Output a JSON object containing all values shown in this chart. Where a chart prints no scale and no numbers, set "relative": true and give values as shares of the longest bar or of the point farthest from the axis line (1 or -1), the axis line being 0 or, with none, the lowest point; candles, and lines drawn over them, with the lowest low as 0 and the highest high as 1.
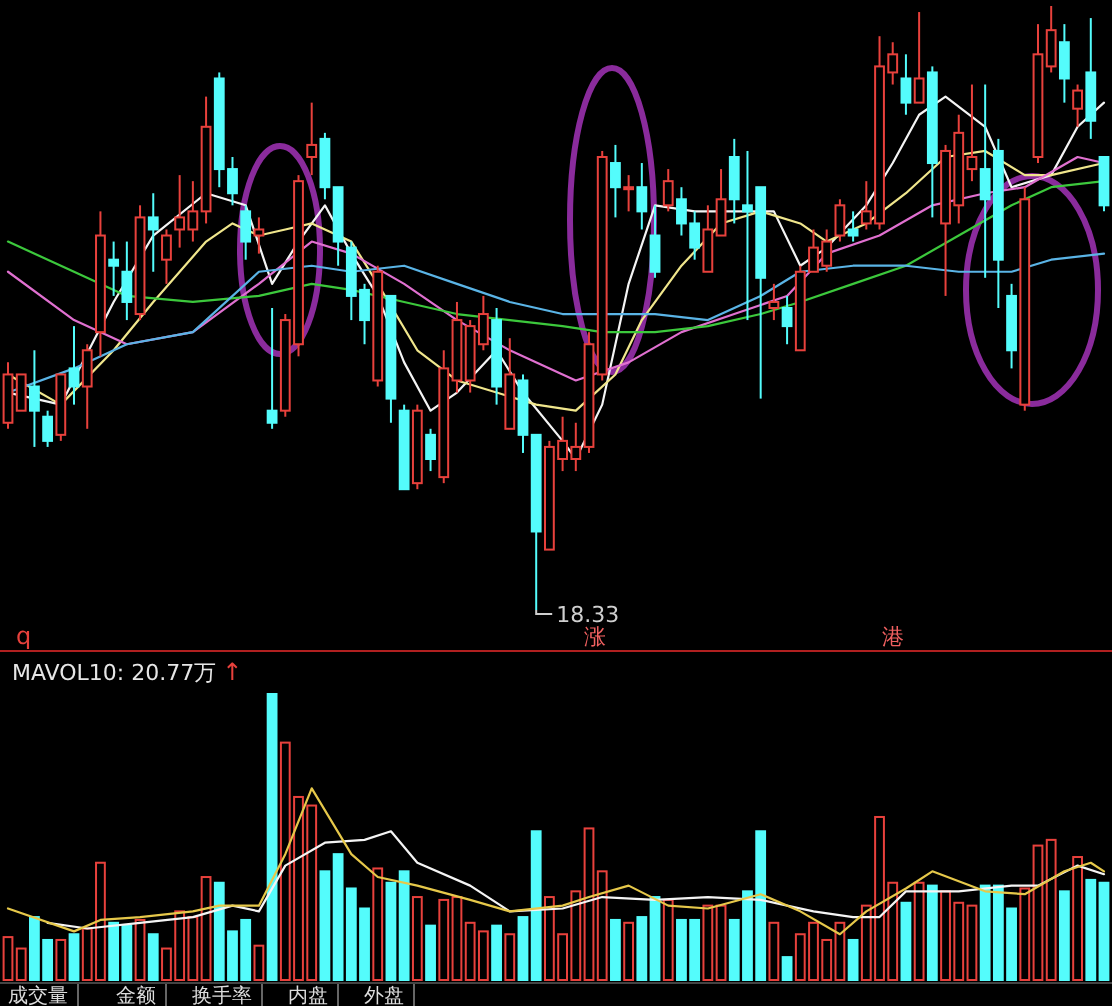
{
  "chart_data": [
    {
      "type": "candlestick",
      "relative": true,
      "categories": [
        null,
        null,
        null,
        null,
        null,
        null,
        null,
        null,
        null,
        null,
        null,
        null,
        null,
        null,
        null,
        null,
        null,
        null,
        null,
        null,
        null,
        null,
        null,
        null,
        null,
        null,
        null,
        null,
        null,
        null,
        null,
        null,
        null,
        null,
        null,
        null,
        null,
        null,
        null,
        null,
        null,
        null,
        null,
        null,
        null,
        null,
        null,
        null,
        null,
        null,
        null,
        null,
        null,
        null,
        null,
        null,
        null,
        null,
        null,
        null,
        null,
        null,
        null,
        null,
        null,
        null,
        null,
        null,
        null,
        null,
        null,
        null,
        null,
        null,
        null,
        null,
        null,
        null,
        null,
        null,
        null,
        null,
        null,
        null
      ],
      "ohlc": [
        [
          0.31,
          0.41,
          0.3,
          0.39
        ],
        [
          0.33,
          0.39,
          0.33,
          0.39
        ],
        [
          0.37,
          0.43,
          0.27,
          0.33
        ],
        [
          0.32,
          0.33,
          0.27,
          0.28
        ],
        [
          0.29,
          0.39,
          0.28,
          0.39
        ],
        [
          0.4,
          0.47,
          0.34,
          0.37
        ],
        [
          0.37,
          0.44,
          0.3,
          0.43
        ],
        [
          0.46,
          0.66,
          0.42,
          0.62
        ],
        [
          0.58,
          0.61,
          0.52,
          0.57
        ],
        [
          0.56,
          0.61,
          0.48,
          0.51
        ],
        [
          0.49,
          0.67,
          0.48,
          0.65
        ],
        [
          0.65,
          0.69,
          0.56,
          0.63
        ],
        [
          0.58,
          0.63,
          0.54,
          0.62
        ],
        [
          0.63,
          0.72,
          0.6,
          0.65
        ],
        [
          0.63,
          0.71,
          0.61,
          0.66
        ],
        [
          0.66,
          0.85,
          0.64,
          0.8
        ],
        [
          0.88,
          0.89,
          0.7,
          0.73
        ],
        [
          0.73,
          0.75,
          0.67,
          0.69
        ],
        [
          0.66,
          0.67,
          0.58,
          0.61
        ],
        [
          0.62,
          0.65,
          0.59,
          0.63
        ],
        [
          0.33,
          0.5,
          0.3,
          0.31
        ],
        [
          0.33,
          0.49,
          0.32,
          0.48
        ],
        [
          0.44,
          0.72,
          0.42,
          0.71
        ],
        [
          0.75,
          0.84,
          0.72,
          0.77
        ],
        [
          0.78,
          0.79,
          0.68,
          0.7
        ],
        [
          0.7,
          0.7,
          0.57,
          0.61
        ],
        [
          0.6,
          0.61,
          0.48,
          0.52
        ],
        [
          0.53,
          0.54,
          0.44,
          0.48
        ],
        [
          0.38,
          0.57,
          0.37,
          0.56
        ],
        [
          0.52,
          0.52,
          0.31,
          0.35
        ],
        [
          0.33,
          0.34,
          0.2,
          0.2
        ],
        [
          0.21,
          0.34,
          0.2,
          0.33
        ],
        [
          0.29,
          0.3,
          0.23,
          0.25
        ],
        [
          0.22,
          0.43,
          0.21,
          0.4
        ],
        [
          0.38,
          0.51,
          0.36,
          0.48
        ],
        [
          0.38,
          0.48,
          0.36,
          0.47
        ],
        [
          0.44,
          0.52,
          0.43,
          0.49
        ],
        [
          0.48,
          0.5,
          0.34,
          0.37
        ],
        [
          0.3,
          0.45,
          0.3,
          0.39
        ],
        [
          0.38,
          0.39,
          0.26,
          0.29
        ],
        [
          0.29,
          0.29,
          0,
          0.13
        ],
        [
          0.1,
          0.28,
          0.1,
          0.27
        ],
        [
          0.25,
          0.32,
          0.23,
          0.28
        ],
        [
          0.25,
          0.31,
          0.23,
          0.27
        ],
        [
          0.27,
          0.46,
          0.26,
          0.44
        ],
        [
          0.39,
          0.76,
          0.38,
          0.75
        ],
        [
          0.74,
          0.77,
          0.65,
          0.7
        ],
        [
          0.7,
          0.72,
          0.66,
          0.7
        ],
        [
          0.7,
          0.74,
          0.63,
          0.66
        ],
        [
          0.62,
          0.67,
          0.55,
          0.56
        ],
        [
          0.67,
          0.73,
          0.66,
          0.71
        ],
        [
          0.68,
          0.7,
          0.62,
          0.64
        ],
        [
          0.64,
          0.66,
          0.58,
          0.6
        ],
        [
          0.56,
          0.67,
          0.56,
          0.63
        ],
        [
          0.62,
          0.73,
          0.62,
          0.68
        ],
        [
          0.75,
          0.78,
          0.64,
          0.68
        ],
        [
          0.67,
          0.76,
          0.48,
          0.66
        ],
        [
          0.7,
          0.7,
          0.35,
          0.55
        ],
        [
          0.5,
          0.54,
          0.48,
          0.51
        ],
        [
          0.5,
          0.52,
          0.44,
          0.47
        ],
        [
          0.43,
          0.57,
          0.43,
          0.56
        ],
        [
          0.56,
          0.63,
          0.56,
          0.6
        ],
        [
          0.57,
          0.63,
          0.56,
          0.61
        ],
        [
          0.62,
          0.68,
          0.61,
          0.67
        ],
        [
          0.63,
          0.66,
          0.61,
          0.62
        ],
        [
          0.64,
          0.71,
          0.63,
          0.66
        ],
        [
          0.64,
          0.95,
          0.63,
          0.9
        ],
        [
          0.89,
          0.94,
          0.87,
          0.92
        ],
        [
          0.88,
          0.92,
          0.82,
          0.84
        ],
        [
          0.84,
          0.99,
          0.84,
          0.88
        ],
        [
          0.89,
          0.9,
          0.65,
          0.74
        ],
        [
          0.64,
          0.77,
          0.52,
          0.76
        ],
        [
          0.67,
          0.82,
          0.64,
          0.79
        ],
        [
          0.73,
          0.87,
          0.71,
          0.75
        ],
        [
          0.73,
          0.87,
          0.55,
          0.68
        ],
        [
          0.76,
          0.78,
          0.5,
          0.58
        ],
        [
          0.52,
          0.54,
          0.4,
          0.43
        ],
        [
          0.34,
          0.7,
          0.33,
          0.68
        ],
        [
          0.75,
          0.97,
          0.74,
          0.92
        ],
        [
          0.9,
          1,
          0.89,
          0.96
        ],
        [
          0.94,
          0.97,
          0.84,
          0.88
        ],
        [
          0.83,
          0.87,
          0.8,
          0.86
        ],
        [
          0.89,
          0.98,
          0.78,
          0.81
        ],
        [
          0.75,
          0.75,
          0.66,
          0.67
        ]
      ],
      "colors": [
        "#e8413c",
        "#e8413c",
        "#54fcfc",
        "#54fcfc",
        "#e8413c",
        "#54fcfc",
        "#e8413c",
        "#e8413c",
        "#54fcfc",
        "#54fcfc",
        "#e8413c",
        "#54fcfc",
        "#e8413c",
        "#e8413c",
        "#e8413c",
        "#e8413c",
        "#54fcfc",
        "#54fcfc",
        "#54fcfc",
        "#e8413c",
        "#54fcfc",
        "#e8413c",
        "#e8413c",
        "#e8413c",
        "#54fcfc",
        "#54fcfc",
        "#54fcfc",
        "#54fcfc",
        "#e8413c",
        "#54fcfc",
        "#54fcfc",
        "#e8413c",
        "#54fcfc",
        "#e8413c",
        "#e8413c",
        "#e8413c",
        "#e8413c",
        "#54fcfc",
        "#e8413c",
        "#54fcfc",
        "#54fcfc",
        "#e8413c",
        "#e8413c",
        "#e8413c",
        "#e8413c",
        "#e8413c",
        "#54fcfc",
        "#e8413c",
        "#54fcfc",
        "#54fcfc",
        "#e8413c",
        "#54fcfc",
        "#54fcfc",
        "#e8413c",
        "#e8413c",
        "#54fcfc",
        "#54fcfc",
        "#54fcfc",
        "#e8413c",
        "#54fcfc",
        "#e8413c",
        "#e8413c",
        "#e8413c",
        "#e8413c",
        "#54fcfc",
        "#e8413c",
        "#e8413c",
        "#e8413c",
        "#54fcfc",
        "#e8413c",
        "#54fcfc",
        "#e8413c",
        "#e8413c",
        "#e8413c",
        "#54fcfc",
        "#54fcfc",
        "#54fcfc",
        "#e8413c",
        "#e8413c",
        "#e8413c",
        "#54fcfc",
        "#e8413c",
        "#54fcfc",
        "#54fcfc"
      ],
      "series": [
        {
          "type": "line",
          "color": "#f4f4f4",
          "values": [
            0.36,
            null,
            null,
            null,
            0.34,
            null,
            null,
            null,
            0.51,
            null,
            null,
            0.62,
            null,
            null,
            null,
            0.69,
            null,
            null,
            0.67,
            null,
            0.54,
            null,
            0.61,
            null,
            0.67,
            null,
            0.59,
            null,
            0.52,
            null,
            0.41,
            null,
            0.33,
            null,
            0.36,
            null,
            null,
            0.43,
            null,
            0.36,
            null,
            null,
            0.28,
            0.25,
            null,
            0.34,
            null,
            0.54,
            null,
            0.67,
            null,
            null,
            0.66,
            null,
            null,
            0.66,
            null,
            null,
            0.66,
            null,
            0.57,
            null,
            0.6,
            null,
            null,
            0.67,
            null,
            0.74,
            null,
            0.82,
            null,
            0.85,
            null,
            null,
            0.8,
            null,
            0.7,
            null,
            null,
            0.72,
            null,
            0.8,
            null,
            0.84
          ]
        },
        {
          "type": "line",
          "color": "#f0e68c",
          "values": [
            0.39,
            null,
            null,
            null,
            0.34,
            null,
            null,
            null,
            0.43,
            null,
            null,
            0.51,
            null,
            null,
            null,
            0.61,
            null,
            0.64,
            null,
            0.62,
            null,
            0.63,
            null,
            0.64,
            null,
            null,
            0.61,
            null,
            0.54,
            null,
            null,
            0.43,
            null,
            null,
            0.38,
            null,
            null,
            0.36,
            null,
            null,
            0.34,
            null,
            null,
            0.33,
            0.35,
            null,
            0.39,
            null,
            0.48,
            null,
            null,
            0.57,
            null,
            null,
            0.64,
            null,
            null,
            0.66,
            null,
            null,
            0.64,
            null,
            0.61,
            null,
            null,
            0.64,
            null,
            null,
            0.69,
            null,
            null,
            0.75,
            null,
            null,
            0.76,
            null,
            null,
            0.72,
            null,
            0.72,
            null,
            null,
            null,
            0.74
          ]
        },
        {
          "type": "line",
          "color": "#e070d0",
          "values": [
            0.56,
            null,
            null,
            null,
            null,
            0.48,
            null,
            null,
            null,
            0.44,
            null,
            null,
            null,
            null,
            0.46,
            null,
            null,
            null,
            null,
            0.54,
            null,
            null,
            null,
            0.61,
            null,
            null,
            0.59,
            null,
            null,
            null,
            0.54,
            null,
            null,
            null,
            0.48,
            null,
            null,
            null,
            0.43,
            null,
            null,
            null,
            0.39,
            0.38,
            null,
            null,
            null,
            0.41,
            null,
            null,
            null,
            0.46,
            null,
            null,
            null,
            0.49,
            null,
            null,
            null,
            0.52,
            null,
            null,
            0.59,
            null,
            null,
            null,
            0.62,
            null,
            null,
            null,
            0.67,
            null,
            null,
            null,
            0.69,
            null,
            null,
            0.7,
            null,
            null,
            null,
            0.75,
            null,
            0.74
          ]
        },
        {
          "type": "line",
          "color": "#3cc83c",
          "values": [
            0.61,
            null,
            null,
            null,
            null,
            0.56,
            null,
            null,
            null,
            0.52,
            null,
            null,
            null,
            null,
            0.51,
            null,
            null,
            null,
            null,
            0.52,
            null,
            null,
            null,
            0.54,
            null,
            null,
            0.53,
            null,
            null,
            null,
            0.51,
            null,
            null,
            null,
            0.49,
            null,
            null,
            null,
            0.48,
            null,
            null,
            null,
            0.47,
            null,
            null,
            0.46,
            null,
            null,
            null,
            0.46,
            null,
            null,
            null,
            0.47,
            null,
            null,
            null,
            0.49,
            null,
            null,
            0.51,
            null,
            null,
            null,
            0.54,
            null,
            null,
            null,
            0.57,
            null,
            null,
            null,
            0.62,
            null,
            null,
            null,
            0.67,
            null,
            null,
            0.7,
            null,
            null,
            null,
            0.71
          ]
        },
        {
          "type": "line",
          "color": "#5ab4e6",
          "values": [
            0.36,
            null,
            null,
            null,
            null,
            0.4,
            null,
            null,
            null,
            0.44,
            null,
            null,
            null,
            null,
            0.46,
            null,
            null,
            null,
            null,
            0.56,
            null,
            null,
            null,
            0.57,
            null,
            null,
            0.56,
            null,
            null,
            null,
            0.57,
            null,
            null,
            null,
            0.54,
            null,
            null,
            null,
            0.51,
            null,
            null,
            null,
            0.49,
            null,
            null,
            0.49,
            null,
            null,
            null,
            0.49,
            null,
            null,
            null,
            0.48,
            null,
            null,
            null,
            0.52,
            null,
            null,
            0.56,
            null,
            null,
            null,
            0.57,
            null,
            null,
            null,
            0.57,
            null,
            null,
            null,
            0.56,
            null,
            null,
            null,
            0.56,
            null,
            null,
            0.58,
            null,
            null,
            null,
            0.59
          ]
        }
      ],
      "annotations": [
        "18.33"
      ]
    },
    {
      "type": "bar",
      "relative": true,
      "categories": [
        null,
        null,
        null,
        null,
        null,
        null,
        null,
        null,
        null,
        null,
        null,
        null,
        null,
        null,
        null,
        null,
        null,
        null,
        null,
        null,
        null,
        null,
        null,
        null,
        null,
        null,
        null,
        null,
        null,
        null,
        null,
        null,
        null,
        null,
        null,
        null,
        null,
        null,
        null,
        null,
        null,
        null,
        null,
        null,
        null,
        null,
        null,
        null,
        null,
        null,
        null,
        null,
        null,
        null,
        null,
        null,
        null,
        null,
        null,
        null,
        null,
        null,
        null,
        null,
        null,
        null,
        null,
        null,
        null,
        null,
        null,
        null,
        null,
        null,
        null,
        null,
        null,
        null,
        null,
        null,
        null,
        null,
        null,
        null
      ],
      "series": [
        {
          "type": "bar",
          "colors": [
            "#e8413c",
            "#e8413c",
            "#54fcfc",
            "#54fcfc",
            "#e8413c",
            "#54fcfc",
            "#e8413c",
            "#e8413c",
            "#54fcfc",
            "#54fcfc",
            "#e8413c",
            "#54fcfc",
            "#e8413c",
            "#e8413c",
            "#e8413c",
            "#e8413c",
            "#54fcfc",
            "#54fcfc",
            "#54fcfc",
            "#e8413c",
            "#54fcfc",
            "#e8413c",
            "#e8413c",
            "#e8413c",
            "#54fcfc",
            "#54fcfc",
            "#54fcfc",
            "#54fcfc",
            "#e8413c",
            "#54fcfc",
            "#54fcfc",
            "#e8413c",
            "#54fcfc",
            "#e8413c",
            "#e8413c",
            "#e8413c",
            "#e8413c",
            "#54fcfc",
            "#e8413c",
            "#54fcfc",
            "#54fcfc",
            "#e8413c",
            "#e8413c",
            "#e8413c",
            "#e8413c",
            "#e8413c",
            "#54fcfc",
            "#e8413c",
            "#54fcfc",
            "#54fcfc",
            "#e8413c",
            "#54fcfc",
            "#54fcfc",
            "#e8413c",
            "#e8413c",
            "#54fcfc",
            "#54fcfc",
            "#54fcfc",
            "#e8413c",
            "#54fcfc",
            "#e8413c",
            "#e8413c",
            "#e8413c",
            "#e8413c",
            "#54fcfc",
            "#e8413c",
            "#e8413c",
            "#e8413c",
            "#54fcfc",
            "#e8413c",
            "#54fcfc",
            "#e8413c",
            "#e8413c",
            "#e8413c",
            "#54fcfc",
            "#54fcfc",
            "#54fcfc",
            "#e8413c",
            "#e8413c",
            "#e8413c",
            "#54fcfc",
            "#e8413c",
            "#54fcfc",
            "#54fcfc"
          ],
          "values": [
            0.15,
            0.11,
            0.22,
            0.14,
            0.14,
            0.16,
            0.18,
            0.41,
            0.2,
            0.19,
            0.21,
            0.16,
            0.11,
            0.24,
            0.22,
            0.36,
            0.34,
            0.17,
            0.21,
            0.12,
            1,
            0.83,
            0.64,
            0.61,
            0.38,
            0.44,
            0.32,
            0.25,
            0.39,
            0.34,
            0.38,
            0.29,
            0.19,
            0.28,
            0.29,
            0.2,
            0.17,
            0.19,
            0.16,
            0.22,
            0.52,
            0.29,
            0.16,
            0.31,
            0.53,
            0.38,
            0.21,
            0.2,
            0.22,
            0.29,
            0.28,
            0.21,
            0.21,
            0.26,
            0.26,
            0.21,
            0.31,
            0.52,
            0.2,
            0.08,
            0.16,
            0.2,
            0.14,
            0.2,
            0.14,
            0.26,
            0.57,
            0.34,
            0.27,
            0.34,
            0.33,
            0.31,
            0.27,
            0.26,
            0.33,
            0.33,
            0.25,
            0.32,
            0.47,
            0.49,
            0.31,
            0.43,
            0.35,
            0.34
          ]
        },
        {
          "type": "line",
          "color": "#f4f4f4",
          "values": [
            null,
            null,
            null,
            0.2,
            null,
            null,
            0.18,
            null,
            null,
            null,
            0.2,
            null,
            null,
            null,
            0.22,
            null,
            null,
            0.26,
            null,
            0.24,
            null,
            0.4,
            null,
            null,
            0.48,
            null,
            null,
            0.49,
            null,
            0.52,
            null,
            0.41,
            null,
            null,
            null,
            0.33,
            null,
            null,
            0.24,
            null,
            null,
            null,
            0.25,
            null,
            null,
            0.29,
            null,
            null,
            null,
            0.28,
            null,
            null,
            null,
            0.29,
            null,
            null,
            null,
            0.28,
            null,
            null,
            null,
            0.24,
            null,
            null,
            0.22,
            null,
            0.22,
            null,
            0.31,
            null,
            null,
            null,
            0.31,
            null,
            null,
            null,
            0.33,
            null,
            0.33,
            null,
            null,
            0.4,
            null,
            0.37
          ]
        },
        {
          "type": "line",
          "color": "#e6c84a",
          "values": [
            0.25,
            null,
            null,
            null,
            null,
            0.17,
            null,
            0.21,
            null,
            null,
            0.22,
            null,
            null,
            null,
            0.24,
            null,
            0.26,
            null,
            null,
            0.26,
            null,
            0.44,
            null,
            0.67,
            null,
            null,
            0.44,
            null,
            0.36,
            null,
            null,
            0.33,
            null,
            null,
            null,
            0.28,
            null,
            null,
            0.24,
            null,
            null,
            null,
            0.26,
            null,
            0.29,
            null,
            null,
            0.33,
            null,
            null,
            0.26,
            null,
            null,
            0.25,
            null,
            null,
            null,
            0.3,
            null,
            null,
            0.24,
            null,
            null,
            0.16,
            null,
            0.24,
            null,
            null,
            0.32,
            null,
            0.38,
            null,
            null,
            null,
            0.31,
            null,
            null,
            0.3,
            null,
            null,
            0.38,
            null,
            0.41,
            0.38
          ]
        }
      ],
      "annotations": [
        "q",
        "涨",
        "港",
        "MAVOL10: 20.77万",
        "↑",
        "成交量",
        "金额",
        "换手率",
        "内盘",
        "外盘"
      ]
    }
  ]
}
